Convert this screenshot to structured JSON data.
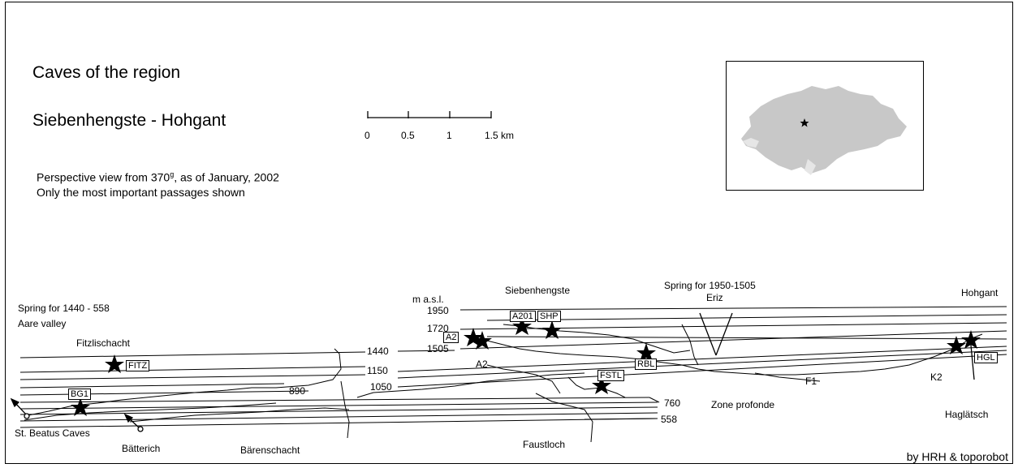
{
  "title_line1": "Caves of the region",
  "title_line2": "Siebenhengste - Hohgant",
  "description": [
    "Perspective view from 370",
    "g",
    ", as of January, 2002"
  ],
  "description_line2": "Only the most important passages shown",
  "scale": {
    "ticks": [
      "0",
      "0.5",
      "1",
      "1.5 km"
    ]
  },
  "elevation_unit": "m a.s.l.",
  "elevations": [
    "1950",
    "1720",
    "1505",
    "1440",
    "1150",
    "1050",
    "890",
    "760",
    "558"
  ],
  "places": {
    "spring_left": "Spring for 1440 - 558",
    "aare_valley": "Aare valley",
    "fitzlischacht": "Fitzlischacht",
    "siebenhengste": "Siebenhengste",
    "spring_right": "Spring for 1950-1505",
    "eriz": "Eriz",
    "hohgant": "Hohgant",
    "st_beatus": "St. Beatus Caves",
    "batterich": "Bätterich",
    "barenschacht": "Bärenschacht",
    "faustloch": "Faustloch",
    "zone_profonde": "Zone profonde",
    "haglatsch": "Haglätsch",
    "a2": "A2",
    "f1": "F1",
    "k2": "K2"
  },
  "boxed_labels": [
    "FITZ",
    "BG1",
    "A2",
    "A201",
    "SHP",
    "RBL",
    "FSTL",
    "HGL"
  ],
  "credit": "by HRH & toporobot",
  "colors": {
    "inset_land": "#c8c8c8",
    "inset_lakes": "#e6e6e6",
    "line": "#000000"
  }
}
